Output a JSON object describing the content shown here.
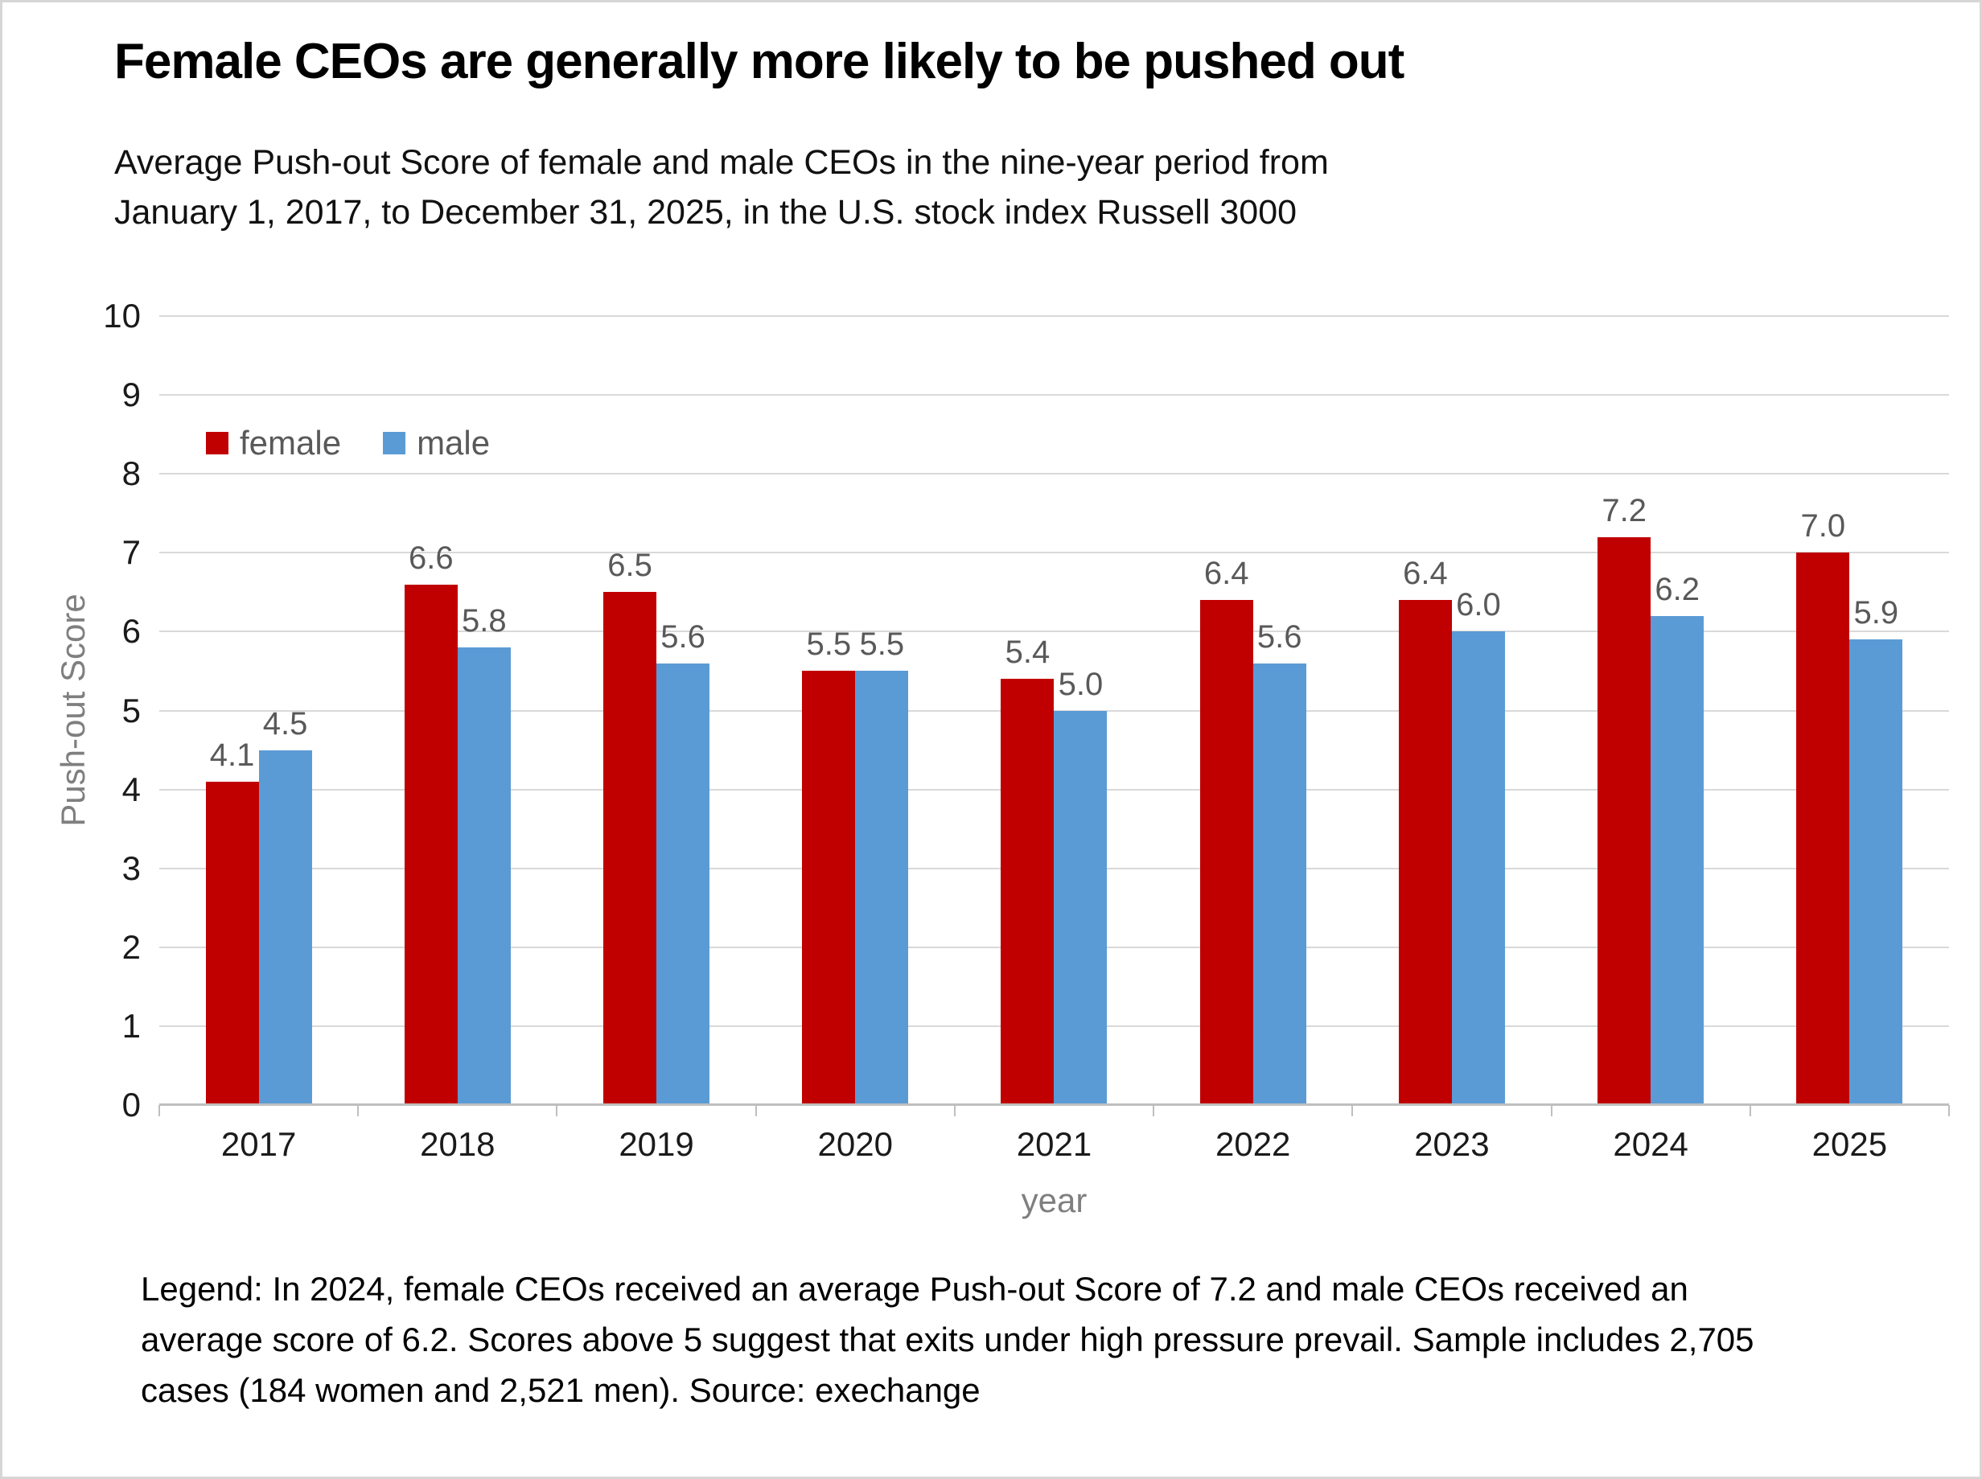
{
  "page": {
    "background": "#ffffff",
    "border_color": "#d6d6d6"
  },
  "header": {
    "title": "Female CEOs are generally more likely to be pushed out",
    "subtitle_lines": [
      "Average Push-out Score of female and male CEOs in the nine-year period from",
      "January 1, 2017, to December 31, 2025, in the U.S. stock index Russell 3000"
    ]
  },
  "chart_data": {
    "type": "bar",
    "categories": [
      "2017",
      "2018",
      "2019",
      "2020",
      "2021",
      "2022",
      "2023",
      "2024",
      "2025"
    ],
    "series": [
      {
        "name": "female",
        "color": "#C00000",
        "values": [
          4.1,
          6.6,
          6.5,
          5.5,
          5.4,
          6.4,
          6.4,
          7.2,
          7.0
        ]
      },
      {
        "name": "male",
        "color": "#5B9BD5",
        "values": [
          4.5,
          5.8,
          5.6,
          5.5,
          5.0,
          5.6,
          6.0,
          6.2,
          5.9
        ]
      }
    ],
    "title": "Female CEOs are generally more likely to be pushed out",
    "xlabel": "year",
    "ylabel": "Push-out Score",
    "ylim": [
      0,
      10
    ],
    "ytick_step": 1,
    "grid": true,
    "legend_position": "inside-top-left",
    "data_label_decimals": 1
  },
  "colors": {
    "female_bar": "#C00000",
    "male_bar": "#5B9BD5",
    "gridline": "#D9D9D9",
    "axis_line": "#BFBFBF",
    "data_label": "#595959",
    "axis_title": "#7F7F7F",
    "tick_label": "#1A1A1A"
  },
  "footer": {
    "lines": [
      "Legend: In 2024, female CEOs received an average Push-out Score of 7.2 and male CEOs received an",
      "average score of 6.2. Scores above 5 suggest that exits under high pressure prevail. Sample includes 2,705",
      "cases (184 women and 2,521 men). Source: exechange"
    ]
  }
}
